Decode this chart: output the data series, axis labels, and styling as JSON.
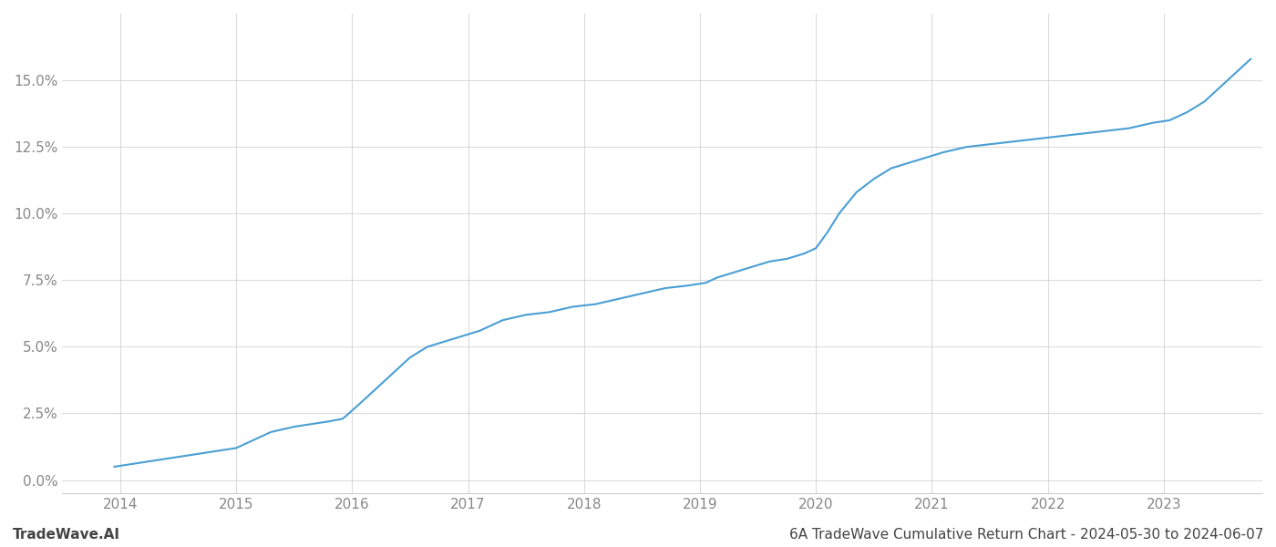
{
  "title": "6A TradeWave Cumulative Return Chart - 2024-05-30 to 2024-06-07",
  "watermark": "TradeWave.AI",
  "x_years": [
    2014,
    2015,
    2016,
    2017,
    2018,
    2019,
    2020,
    2021,
    2022,
    2023
  ],
  "line_color": "#4a9fd4",
  "line_width": 1.5,
  "background_color": "#ffffff",
  "grid_color": "#cccccc",
  "label_color": "#888888",
  "watermark_color": "#444444",
  "title_color": "#444444",
  "ylim": [
    -0.005,
    0.175
  ],
  "xlim": [
    2013.5,
    2023.85
  ],
  "yticks": [
    0.0,
    0.025,
    0.05,
    0.075,
    0.1,
    0.125,
    0.15
  ],
  "x_data": [
    2013.95,
    2014.1,
    2014.25,
    2014.4,
    2014.55,
    2014.7,
    2014.85,
    2015.0,
    2015.15,
    2015.3,
    2015.5,
    2015.65,
    2015.8,
    2015.92,
    2016.05,
    2016.2,
    2016.35,
    2016.5,
    2016.65,
    2016.8,
    2016.95,
    2017.1,
    2017.3,
    2017.5,
    2017.7,
    2017.9,
    2018.1,
    2018.3,
    2018.5,
    2018.7,
    2018.9,
    2019.05,
    2019.15,
    2019.3,
    2019.45,
    2019.6,
    2019.75,
    2019.9,
    2020.0,
    2020.1,
    2020.2,
    2020.35,
    2020.5,
    2020.65,
    2020.8,
    2020.95,
    2021.1,
    2021.3,
    2021.5,
    2021.7,
    2021.9,
    2022.1,
    2022.3,
    2022.5,
    2022.7,
    2022.9,
    2023.05,
    2023.2,
    2023.35,
    2023.5,
    2023.65,
    2023.75
  ],
  "y_data": [
    0.005,
    0.006,
    0.007,
    0.008,
    0.009,
    0.01,
    0.011,
    0.012,
    0.015,
    0.018,
    0.02,
    0.021,
    0.022,
    0.023,
    0.028,
    0.034,
    0.04,
    0.046,
    0.05,
    0.052,
    0.054,
    0.056,
    0.06,
    0.062,
    0.063,
    0.065,
    0.066,
    0.068,
    0.07,
    0.072,
    0.073,
    0.074,
    0.076,
    0.078,
    0.08,
    0.082,
    0.083,
    0.085,
    0.087,
    0.093,
    0.1,
    0.108,
    0.113,
    0.117,
    0.119,
    0.121,
    0.123,
    0.125,
    0.126,
    0.127,
    0.128,
    0.129,
    0.13,
    0.131,
    0.132,
    0.134,
    0.135,
    0.138,
    0.142,
    0.148,
    0.154,
    0.158
  ]
}
